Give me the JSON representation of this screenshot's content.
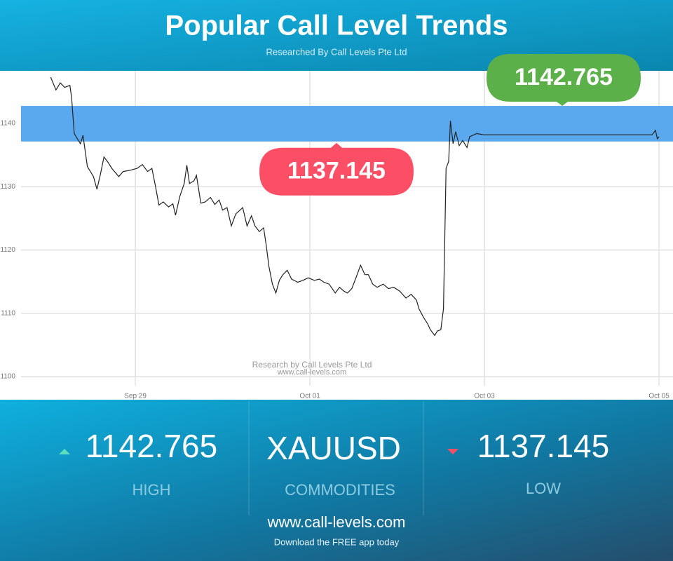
{
  "header": {
    "title": "Popular Call Level Trends",
    "subtitle": "Researched By Call Levels Pte Ltd"
  },
  "chart_data": {
    "type": "line",
    "color": "#222222",
    "x": [
      28.03,
      28.09,
      28.14,
      28.19,
      28.25,
      28.27,
      28.3,
      28.33,
      28.37,
      28.4,
      28.45,
      28.52,
      28.56,
      28.6,
      28.64,
      28.69,
      28.73,
      28.81,
      28.86,
      28.94,
      29.02,
      29.08,
      29.14,
      29.19,
      29.23,
      29.27,
      29.32,
      29.38,
      29.43,
      29.46,
      29.51,
      29.56,
      29.59,
      29.62,
      29.67,
      29.7,
      29.75,
      29.8,
      29.86,
      29.91,
      29.96,
      30.0,
      30.05,
      30.1,
      30.15,
      30.2,
      30.23,
      30.28,
      30.33,
      30.37,
      30.42,
      30.47,
      30.5,
      30.53,
      30.57,
      30.61,
      30.65,
      30.69,
      30.74,
      30.79,
      30.86,
      30.92,
      30.98,
      31.05,
      31.11,
      31.16,
      31.22,
      31.29,
      31.34,
      31.39,
      31.43,
      31.48,
      31.53,
      31.58,
      31.63,
      31.67,
      31.72,
      31.77,
      31.84,
      31.9,
      31.96,
      32.03,
      32.1,
      32.16,
      32.22,
      32.25,
      32.3,
      32.35,
      32.38,
      32.43,
      32.46,
      32.5,
      32.53,
      32.56,
      32.59,
      32.61,
      32.64,
      32.67,
      32.71,
      32.75,
      32.8,
      32.83,
      32.88,
      32.91,
      32.99,
      33.88,
      34.92,
      34.96,
      34.98,
      35.0
    ],
    "values": [
      1147.3,
      1145.3,
      1146.4,
      1145.7,
      1146.0,
      1144.0,
      1138.4,
      1137.7,
      1136.8,
      1138.1,
      1133.2,
      1131.6,
      1129.6,
      1132.0,
      1134.7,
      1133.8,
      1132.9,
      1131.6,
      1132.4,
      1132.6,
      1132.9,
      1133.5,
      1132.4,
      1132.9,
      1130.1,
      1127.1,
      1127.6,
      1126.8,
      1127.3,
      1125.5,
      1128.5,
      1130.5,
      1133.4,
      1130.5,
      1130.9,
      1131.8,
      1127.4,
      1127.6,
      1128.3,
      1127.2,
      1127.9,
      1126.3,
      1126.7,
      1123.8,
      1125.7,
      1126.3,
      1126.7,
      1123.8,
      1125.4,
      1123.8,
      1122.9,
      1123.5,
      1120.7,
      1117.4,
      1114.6,
      1113.2,
      1115.2,
      1116.1,
      1116.8,
      1115.4,
      1114.9,
      1115.2,
      1115.6,
      1115.2,
      1115.4,
      1114.9,
      1114.6,
      1113.2,
      1114.1,
      1113.5,
      1113.2,
      1113.9,
      1115.7,
      1117.6,
      1116.1,
      1116.1,
      1114.6,
      1114.1,
      1114.6,
      1113.9,
      1114.1,
      1113.5,
      1112.4,
      1113.0,
      1112.1,
      1110.7,
      1109.4,
      1108.3,
      1107.4,
      1106.5,
      1107.2,
      1107.4,
      1110.7,
      1132.9,
      1134.0,
      1140.4,
      1136.8,
      1138.7,
      1136.5,
      1137.3,
      1136.2,
      1137.9,
      1138.2,
      1138.4,
      1138.2,
      1138.2,
      1138.2,
      1138.9,
      1137.6,
      1137.9
    ],
    "xlim": [
      27.69,
      35.16
    ],
    "xticks": [
      {
        "value": 29,
        "label": "Sep 29"
      },
      {
        "value": 31,
        "label": "Oct 01"
      },
      {
        "value": 33,
        "label": "Oct 03"
      },
      {
        "value": 35,
        "label": "Oct 05"
      }
    ],
    "ylim": [
      1098.56,
      1148.31
    ],
    "yticks": [
      1100,
      1110,
      1120,
      1130,
      1140
    ],
    "grid": true,
    "band": {
      "low": 1137.145,
      "high": 1142.765,
      "color": "#5aa9ee"
    },
    "callout_colors": {
      "high": "#5cb04a",
      "low": "#fc4f66"
    },
    "watermark": [
      "Research by Call Levels Pte Ltd",
      "www.call-levels.com"
    ]
  },
  "stats": {
    "symbol": "XAUUSD",
    "high_label": "HIGH",
    "category": "COMMODITIES",
    "low_label": "LOW"
  },
  "footer": {
    "url": "www.call-levels.com",
    "tagline": "Download the FREE app today"
  }
}
